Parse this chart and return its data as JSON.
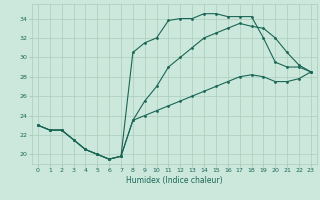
{
  "xlabel": "Humidex (Indice chaleur)",
  "bg_color": "#cce8dd",
  "grid_color": "#aaccbb",
  "line_color": "#1a6655",
  "xlim": [
    -0.5,
    23.5
  ],
  "ylim": [
    19.0,
    35.5
  ],
  "xticks": [
    0,
    1,
    2,
    3,
    4,
    5,
    6,
    7,
    8,
    9,
    10,
    11,
    12,
    13,
    14,
    15,
    16,
    17,
    18,
    19,
    20,
    21,
    22,
    23
  ],
  "yticks": [
    20,
    22,
    24,
    26,
    28,
    30,
    32,
    34
  ],
  "line1_x": [
    0,
    1,
    2,
    3,
    4,
    5,
    6,
    7,
    8,
    9,
    10,
    11,
    12,
    13,
    14,
    15,
    16,
    17,
    18,
    19,
    20,
    21,
    22,
    23
  ],
  "line1_y": [
    23.0,
    22.5,
    22.5,
    21.5,
    20.5,
    20.0,
    19.5,
    19.8,
    30.5,
    31.5,
    32.0,
    33.8,
    34.0,
    34.0,
    34.5,
    34.5,
    34.2,
    34.2,
    34.2,
    32.0,
    29.5,
    29.0,
    29.0,
    28.5
  ],
  "line2_x": [
    0,
    1,
    2,
    3,
    4,
    5,
    6,
    7,
    8,
    9,
    10,
    11,
    12,
    13,
    14,
    15,
    16,
    17,
    18,
    19,
    20,
    21,
    22,
    23
  ],
  "line2_y": [
    23.0,
    22.5,
    22.5,
    21.5,
    20.5,
    20.0,
    19.5,
    19.8,
    23.5,
    25.5,
    27.0,
    29.0,
    30.0,
    31.0,
    32.0,
    32.5,
    33.0,
    33.5,
    33.2,
    33.0,
    32.0,
    30.5,
    29.2,
    28.5
  ],
  "line3_x": [
    0,
    1,
    2,
    3,
    4,
    5,
    6,
    7,
    8,
    9,
    10,
    11,
    12,
    13,
    14,
    15,
    16,
    17,
    18,
    19,
    20,
    21,
    22,
    23
  ],
  "line3_y": [
    23.0,
    22.5,
    22.5,
    21.5,
    20.5,
    20.0,
    19.5,
    19.8,
    23.5,
    24.0,
    24.5,
    25.0,
    25.5,
    26.0,
    26.5,
    27.0,
    27.5,
    28.0,
    28.2,
    28.0,
    27.5,
    27.5,
    27.8,
    28.5
  ]
}
